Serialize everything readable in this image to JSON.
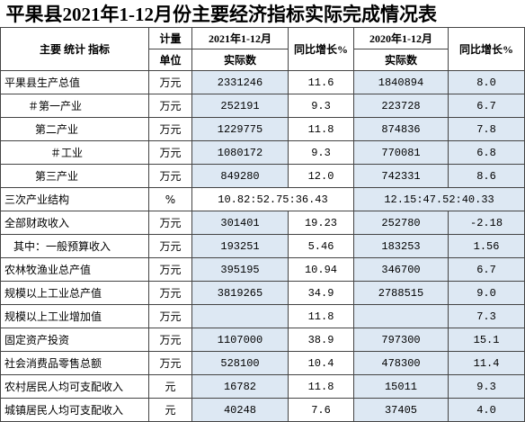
{
  "title": "平果县2021年1-12月份主要经济指标实际完成情况表",
  "header": {
    "row1": [
      "主要 统计 指标",
      "计量",
      "2021年1-12月",
      "同比增长%",
      "2020年1-12月",
      "同比增长%"
    ],
    "row2": [
      "单位",
      "实际数",
      "实际数"
    ]
  },
  "table": {
    "rows": [
      [
        "平果县生产总值",
        "万元",
        "2331246",
        "11.6",
        "1840894",
        "8.0"
      ],
      [
        "＃第一产业",
        "万元",
        "252191",
        "9.3",
        "223728",
        "6.7"
      ],
      [
        "第二产业",
        "万元",
        "1229775",
        "11.8",
        "874836",
        "7.8"
      ],
      [
        "＃工业",
        "万元",
        "1080172",
        "9.3",
        "770081",
        "6.8"
      ],
      [
        "第三产业",
        "万元",
        "849280",
        "12.0",
        "742331",
        "8.6"
      ],
      [
        "三次产业结构",
        "%",
        "10.82:52.75:36.43",
        "12.15:47.52:40.33"
      ],
      [
        "全部财政收入",
        "万元",
        "301401",
        "19.23",
        "252780",
        "-2.18"
      ],
      [
        "其中：一般预算收入",
        "万元",
        "193251",
        "5.46",
        "183253",
        "1.56"
      ],
      [
        "农林牧渔业总产值",
        "万元",
        "395195",
        "10.94",
        "346700",
        "6.7"
      ],
      [
        "规模以上工业总产值",
        "万元",
        "3819265",
        "34.9",
        "2788515",
        "9.0"
      ],
      [
        "规模以上工业增加值",
        "万元",
        null,
        "11.8",
        null,
        "7.3"
      ],
      [
        "固定资产投资",
        "万元",
        "1107000",
        "38.9",
        "797300",
        "15.1"
      ],
      [
        "社会消费品零售总额",
        "万元",
        "528100",
        "10.4",
        "478300",
        "11.4"
      ],
      [
        "农村居民人均可支配收入",
        "元",
        "16782",
        "11.8",
        "15011",
        "9.3"
      ],
      [
        "城镇居民人均可支配收入",
        "元",
        "40248",
        "7.6",
        "37405",
        "4.0"
      ]
    ]
  }
}
